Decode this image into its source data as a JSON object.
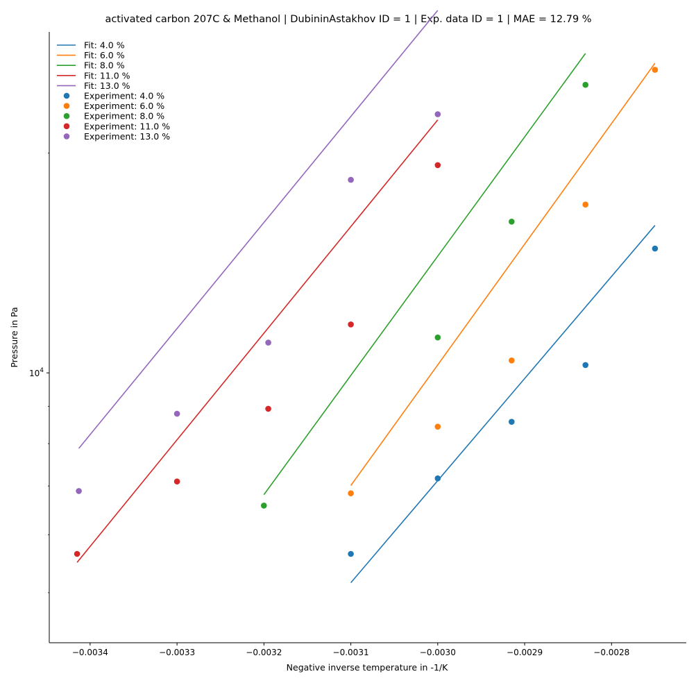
{
  "chart_data": {
    "type": "line",
    "title": "activated carbon 207C & Methanol | DubininAstakhov ID = 1 | Exp. data ID = 1 | MAE = 12.79 %",
    "xlabel": "Negative inverse temperature in -1/K",
    "ylabel": "Pressure in Pa",
    "y_scale": "log",
    "xlim": [
      -0.003447,
      -0.002714
    ],
    "ylim": [
      4270,
      29300
    ],
    "x_ticks": [
      -0.0034,
      -0.0033,
      -0.0032,
      -0.0031,
      -0.003,
      -0.0029,
      -0.0028
    ],
    "x_tick_labels": [
      "−0.0034",
      "−0.0033",
      "−0.0032",
      "−0.0031",
      "−0.0030",
      "−0.0029",
      "−0.0028"
    ],
    "y_ticks": [
      10000
    ],
    "y_tick_labels": [
      "10^4"
    ],
    "y_minor_ticks": [
      5000,
      6000,
      7000,
      8000,
      9000,
      20000
    ],
    "grid": false,
    "legend_position": "top-left",
    "colors": {
      "blue": "#1f77b4",
      "orange": "#ff7f0e",
      "green": "#2ca02c",
      "red": "#d62728",
      "purple": "#9467bd"
    },
    "fit_series": [
      {
        "name": "Fit: 4.0 %",
        "color": "#1f77b4",
        "x": [
          -0.0031,
          -0.00275
        ],
        "y": [
          5160,
          15920
        ]
      },
      {
        "name": "Fit: 6.0 %",
        "color": "#ff7f0e",
        "x": [
          -0.0031,
          -0.00275
        ],
        "y": [
          7010,
          26550
        ]
      },
      {
        "name": "Fit: 8.0 %",
        "color": "#2ca02c",
        "x": [
          -0.0032,
          -0.00283
        ],
        "y": [
          6810,
          27380
        ]
      },
      {
        "name": "Fit: 11.0 %",
        "color": "#d62728",
        "x": [
          -0.003415,
          -0.003
        ],
        "y": [
          5500,
          22200
        ]
      },
      {
        "name": "Fit: 13.0 %",
        "color": "#9467bd",
        "x": [
          -0.003413,
          -0.003
        ],
        "y": [
          7880,
          31360
        ]
      }
    ],
    "experiment_series": [
      {
        "name": "Experiment: 4.0 %",
        "color": "#1f77b4",
        "x": [
          -0.0031,
          -0.003,
          -0.002915,
          -0.00283,
          -0.00275
        ],
        "y": [
          5650,
          7170,
          8570,
          10250,
          14800
        ]
      },
      {
        "name": "Experiment: 6.0 %",
        "color": "#ff7f0e",
        "x": [
          -0.0031,
          -0.003,
          -0.002915,
          -0.00283,
          -0.00275
        ],
        "y": [
          6840,
          8440,
          10400,
          17000,
          26000
        ]
      },
      {
        "name": "Experiment: 8.0 %",
        "color": "#2ca02c",
        "x": [
          -0.0032,
          -0.003,
          -0.002915,
          -0.00283
        ],
        "y": [
          6580,
          11180,
          16110,
          24800
        ]
      },
      {
        "name": "Experiment: 11.0 %",
        "color": "#d62728",
        "x": [
          -0.003415,
          -0.0033,
          -0.003195,
          -0.0031,
          -0.003
        ],
        "y": [
          5650,
          7100,
          8930,
          11650,
          19250
        ]
      },
      {
        "name": "Experiment: 13.0 %",
        "color": "#9467bd",
        "x": [
          -0.003413,
          -0.0033,
          -0.003195,
          -0.0031,
          -0.003
        ],
        "y": [
          6890,
          8790,
          11000,
          18380,
          22600
        ]
      }
    ]
  }
}
